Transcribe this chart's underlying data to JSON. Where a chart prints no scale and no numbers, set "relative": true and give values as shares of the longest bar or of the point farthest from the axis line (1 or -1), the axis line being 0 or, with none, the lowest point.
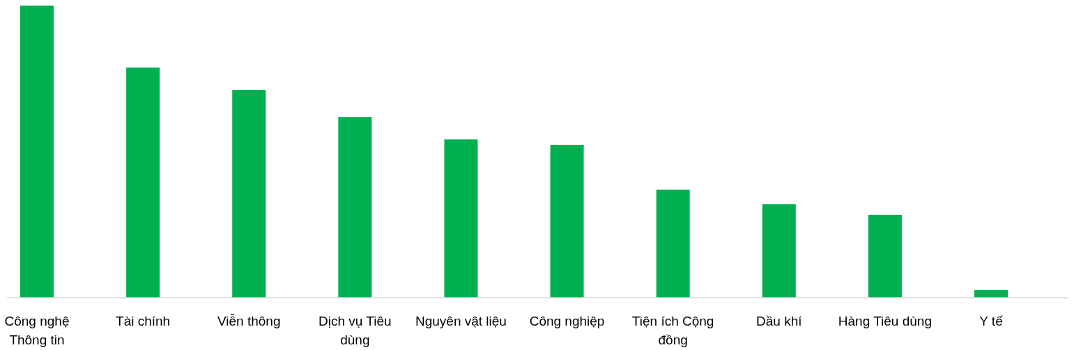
{
  "chart_data": {
    "type": "bar",
    "relative": true,
    "color": "#00b050",
    "categories": [
      "Công nghệ Thông tin",
      "Tài chính",
      "Viễn thông",
      "Dịch vụ Tiêu dùng",
      "Nguyên vật liệu",
      "Công nghiệp",
      "Tiện ích Cộng đồng",
      "Dầu khí",
      "Hàng Tiêu dùng",
      "Y tế"
    ],
    "values": [
      1,
      0.788,
      0.711,
      0.618,
      0.542,
      0.523,
      0.37,
      0.32,
      0.284,
      0.026
    ]
  }
}
